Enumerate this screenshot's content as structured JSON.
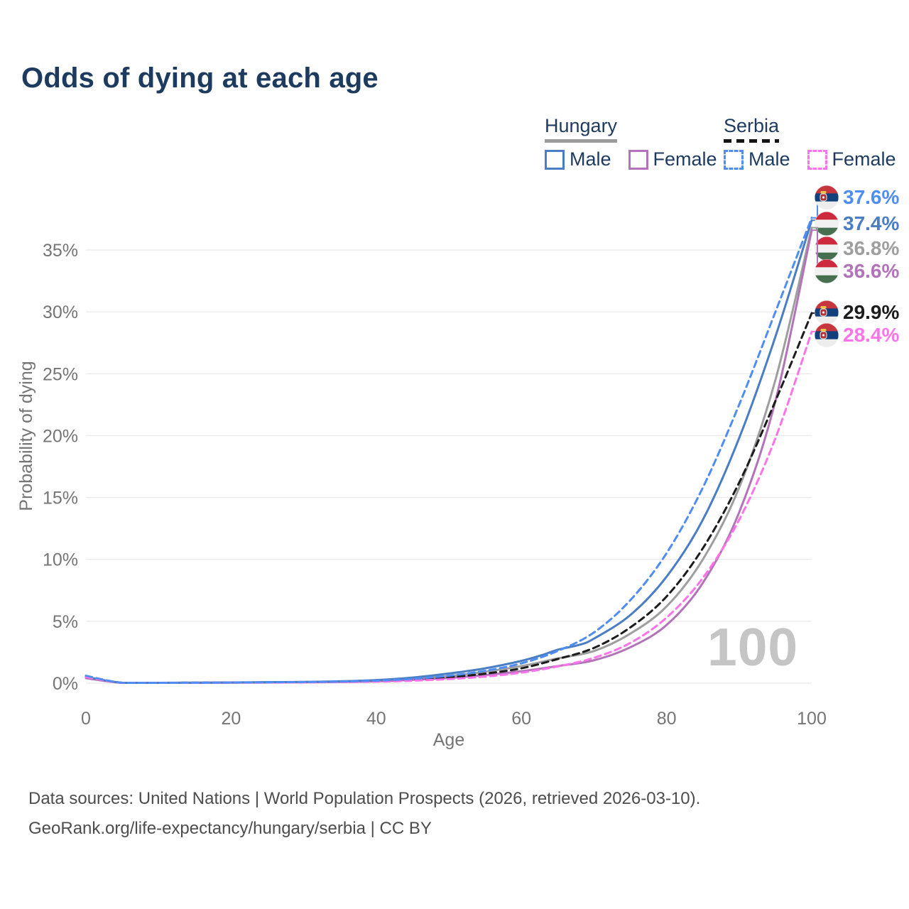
{
  "title": "Odds of dying at each age",
  "watermark": "100",
  "legend": {
    "hungary": {
      "label": "Hungary",
      "male": "Male",
      "female": "Female"
    },
    "serbia": {
      "label": "Serbia",
      "male": "Male",
      "female": "Female"
    }
  },
  "footer": {
    "line1": "Data sources: United Nations | World Population Prospects (2026, retrieved 2026-03-10).",
    "line2": "GeoRank.org/life-expectancy/hungary/serbia | CC BY"
  },
  "colors": {
    "title_navy": "#1d3a5f",
    "hungary_male_blue": "#4a7dc2",
    "serbia_male_blue": "#4f8df5",
    "hungary_female_purple": "#b273b8",
    "serbia_female_pink": "#ff73ea",
    "hungary_total_gray": "#9e9e9e",
    "serbia_total_black": "#1c1c1c",
    "grid_gray": "#ebebeb",
    "tick_gray": "#757575",
    "watermark_gray": "#c5c5c5"
  },
  "chart_data": {
    "type": "line",
    "title": "Odds of dying at each age",
    "xlabel": "Age",
    "ylabel": "Probability of dying",
    "xlim": [
      0,
      100
    ],
    "ylim_pct": [
      0,
      39
    ],
    "xticks": [
      0,
      20,
      40,
      60,
      80,
      100
    ],
    "yticks_pct": [
      0,
      5,
      10,
      15,
      20,
      25,
      30,
      35
    ],
    "grid": "horizontal-only",
    "legend_position": "top-right",
    "hover_age": 100,
    "series": [
      {
        "id": "hungary-total",
        "name": "Hungary Both sexes",
        "country": "Hungary",
        "sex": "Both",
        "color": "#9e9e9e",
        "dashed": false,
        "end_label": "36.8%",
        "end_value_pct": 36.8,
        "points_age_pct": [
          [
            0,
            0.45
          ],
          [
            5,
            0.02
          ],
          [
            10,
            0.02
          ],
          [
            20,
            0.05
          ],
          [
            30,
            0.09
          ],
          [
            35,
            0.13
          ],
          [
            40,
            0.2
          ],
          [
            45,
            0.35
          ],
          [
            50,
            0.58
          ],
          [
            55,
            0.92
          ],
          [
            60,
            1.38
          ],
          [
            65,
            2.0
          ],
          [
            70,
            2.6
          ],
          [
            75,
            4.0
          ],
          [
            80,
            6.2
          ],
          [
            85,
            10.0
          ],
          [
            90,
            15.8
          ],
          [
            95,
            24.5
          ],
          [
            100,
            36.8
          ]
        ]
      },
      {
        "id": "hungary-female",
        "name": "Hungary Female",
        "country": "Hungary",
        "sex": "Female",
        "color": "#b273b8",
        "dashed": false,
        "end_label": "36.6%",
        "end_value_pct": 36.6,
        "points_age_pct": [
          [
            0,
            0.4
          ],
          [
            5,
            0.02
          ],
          [
            10,
            0.02
          ],
          [
            20,
            0.04
          ],
          [
            30,
            0.07
          ],
          [
            35,
            0.1
          ],
          [
            40,
            0.15
          ],
          [
            45,
            0.27
          ],
          [
            50,
            0.42
          ],
          [
            55,
            0.66
          ],
          [
            60,
            0.97
          ],
          [
            65,
            1.38
          ],
          [
            70,
            1.85
          ],
          [
            75,
            2.9
          ],
          [
            80,
            4.7
          ],
          [
            85,
            8.1
          ],
          [
            90,
            13.8
          ],
          [
            95,
            22.8
          ],
          [
            100,
            36.6
          ]
        ]
      },
      {
        "id": "hungary-male",
        "name": "Hungary Male",
        "country": "Hungary",
        "sex": "Male",
        "color": "#4a7dc2",
        "dashed": false,
        "end_label": "37.4%",
        "end_value_pct": 37.4,
        "points_age_pct": [
          [
            0,
            0.5
          ],
          [
            5,
            0.02
          ],
          [
            10,
            0.02
          ],
          [
            20,
            0.06
          ],
          [
            30,
            0.1
          ],
          [
            35,
            0.15
          ],
          [
            40,
            0.25
          ],
          [
            45,
            0.45
          ],
          [
            50,
            0.78
          ],
          [
            55,
            1.2
          ],
          [
            60,
            1.8
          ],
          [
            63,
            2.3
          ],
          [
            65,
            2.7
          ],
          [
            68,
            3.1
          ],
          [
            70,
            3.6
          ],
          [
            75,
            5.5
          ],
          [
            80,
            8.6
          ],
          [
            85,
            13.2
          ],
          [
            90,
            19.8
          ],
          [
            95,
            28.0
          ],
          [
            100,
            37.4
          ]
        ]
      },
      {
        "id": "serbia-total",
        "name": "Serbia Both sexes",
        "country": "Serbia",
        "sex": "Both",
        "color": "#1c1c1c",
        "dashed": true,
        "end_label": "29.9%",
        "end_value_pct": 29.9,
        "points_age_pct": [
          [
            0,
            0.55
          ],
          [
            5,
            0.02
          ],
          [
            10,
            0.02
          ],
          [
            20,
            0.05
          ],
          [
            30,
            0.08
          ],
          [
            35,
            0.12
          ],
          [
            40,
            0.16
          ],
          [
            45,
            0.28
          ],
          [
            50,
            0.47
          ],
          [
            55,
            0.77
          ],
          [
            60,
            1.2
          ],
          [
            65,
            1.95
          ],
          [
            70,
            2.85
          ],
          [
            75,
            4.5
          ],
          [
            80,
            7.0
          ],
          [
            85,
            10.9
          ],
          [
            90,
            16.2
          ],
          [
            95,
            22.8
          ],
          [
            100,
            29.9
          ]
        ]
      },
      {
        "id": "serbia-female",
        "name": "Serbia Female",
        "country": "Serbia",
        "sex": "Female",
        "color": "#ff73ea",
        "dashed": true,
        "end_label": "28.4%",
        "end_value_pct": 28.4,
        "points_age_pct": [
          [
            0,
            0.5
          ],
          [
            5,
            0.02
          ],
          [
            10,
            0.02
          ],
          [
            20,
            0.04
          ],
          [
            30,
            0.06
          ],
          [
            35,
            0.09
          ],
          [
            40,
            0.12
          ],
          [
            45,
            0.2
          ],
          [
            50,
            0.33
          ],
          [
            55,
            0.53
          ],
          [
            60,
            0.85
          ],
          [
            65,
            1.35
          ],
          [
            70,
            2.05
          ],
          [
            75,
            3.25
          ],
          [
            80,
            5.3
          ],
          [
            85,
            8.5
          ],
          [
            90,
            13.2
          ],
          [
            95,
            19.8
          ],
          [
            100,
            28.4
          ]
        ]
      },
      {
        "id": "serbia-male",
        "name": "Serbia Male",
        "country": "Serbia",
        "sex": "Male",
        "color": "#4f8df5",
        "dashed": true,
        "end_label": "37.6%",
        "end_value_pct": 37.6,
        "points_age_pct": [
          [
            0,
            0.6
          ],
          [
            5,
            0.02
          ],
          [
            10,
            0.02
          ],
          [
            20,
            0.05
          ],
          [
            30,
            0.09
          ],
          [
            35,
            0.13
          ],
          [
            40,
            0.2
          ],
          [
            45,
            0.35
          ],
          [
            50,
            0.6
          ],
          [
            55,
            1.0
          ],
          [
            60,
            1.6
          ],
          [
            65,
            2.6
          ],
          [
            70,
            4.1
          ],
          [
            75,
            6.7
          ],
          [
            80,
            10.5
          ],
          [
            85,
            15.8
          ],
          [
            90,
            22.5
          ],
          [
            95,
            30.0
          ],
          [
            100,
            37.6
          ]
        ]
      }
    ],
    "end_labels": [
      {
        "text": "37.6%",
        "series": "serbia-male",
        "flag": "serbia",
        "color": "#4f8df5"
      },
      {
        "text": "37.4%",
        "series": "hungary-male",
        "flag": "hungary",
        "color": "#4a7dc2"
      },
      {
        "text": "36.8%",
        "series": "hungary-total",
        "flag": "hungary",
        "color": "#9e9e9e"
      },
      {
        "text": "36.6%",
        "series": "hungary-female",
        "flag": "hungary",
        "color": "#b273b8"
      },
      {
        "text": "29.9%",
        "series": "serbia-total",
        "flag": "serbia",
        "color": "#1c1c1c"
      },
      {
        "text": "28.4%",
        "series": "serbia-female",
        "flag": "serbia",
        "color": "#ff73ea"
      }
    ]
  }
}
